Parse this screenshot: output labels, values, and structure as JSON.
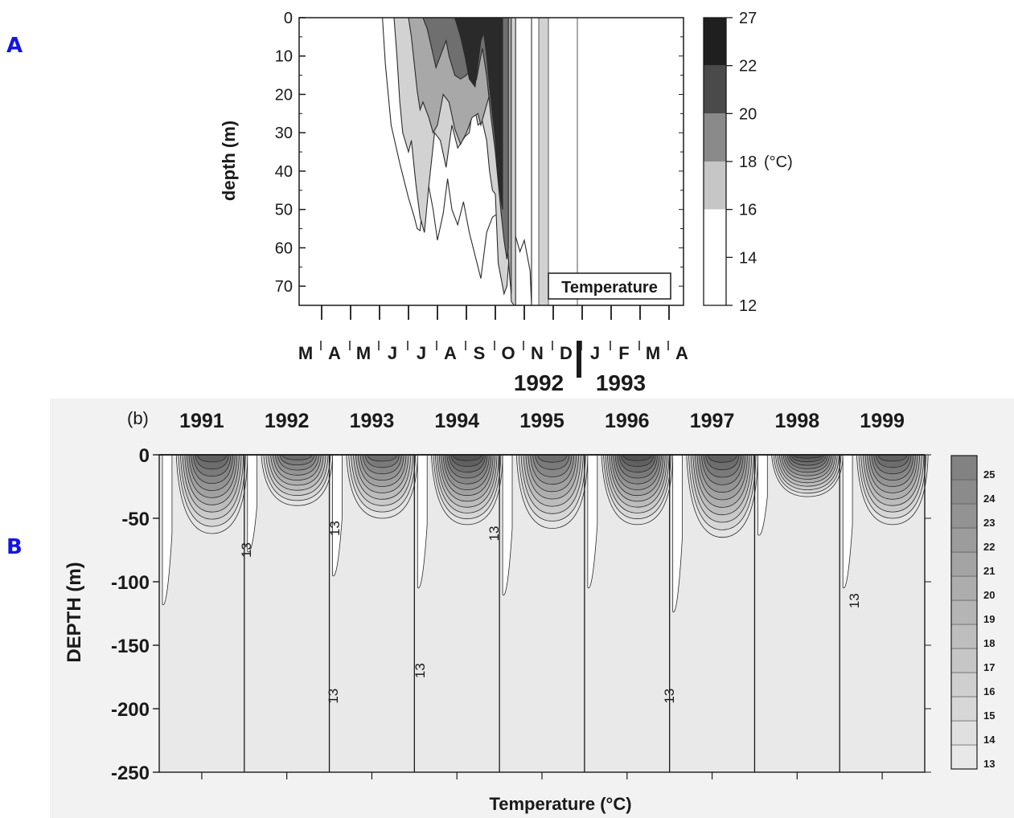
{
  "panel_labels": {
    "a": "A",
    "b": "B"
  },
  "colors": {
    "panel_letter": "#1414e6",
    "ink": "#1a1a1a",
    "panel_b_background": "#f2f2f2"
  },
  "chart_data": [
    {
      "id": "A",
      "type": "heatmap",
      "title": "",
      "annotation": "Temperature",
      "ylabel": "depth (m)",
      "yticks": [
        0,
        10,
        20,
        30,
        40,
        50,
        60,
        70
      ],
      "ylim": [
        0,
        75
      ],
      "months": [
        "M",
        "A",
        "M",
        "J",
        "J",
        "A",
        "S",
        "O",
        "N",
        "D",
        "J",
        "F",
        "M",
        "A"
      ],
      "years": [
        "1992",
        "1993"
      ],
      "colorbar": {
        "unit": "(°C)",
        "levels": [
          27,
          22,
          20,
          18,
          16,
          14,
          12
        ]
      },
      "contours": [
        {
          "level": 14,
          "x": [
            2.6,
            2.7,
            2.9,
            3.2,
            3.5,
            3.7,
            3.8,
            3.9,
            4.0,
            4.2,
            4.35,
            4.5,
            4.7,
            4.85,
            5.0,
            5.2,
            5.4,
            5.6,
            5.8,
            6.0,
            6.2,
            6.4,
            6.6,
            6.8,
            7.0,
            7.1,
            7.2,
            7.35,
            7.5,
            7.6,
            7.7,
            7.75
          ],
          "y": [
            0,
            12,
            28,
            38,
            47,
            52,
            55,
            55.5,
            48,
            44,
            50,
            58,
            51,
            42,
            50,
            54,
            48,
            56,
            62,
            68,
            56,
            52,
            51,
            54,
            58,
            60,
            57,
            61,
            58,
            62,
            66,
            75
          ]
        },
        {
          "level": 16,
          "x": [
            3.0,
            3.1,
            3.2,
            3.3,
            3.5,
            3.6,
            3.75,
            3.9,
            4.05,
            4.2,
            4.4,
            4.6,
            4.8,
            5.0,
            5.2,
            5.45,
            5.6,
            5.75,
            5.9,
            6.05,
            6.2,
            6.3,
            6.4,
            6.5,
            6.6,
            6.7,
            6.8,
            6.9,
            7.0,
            7.05,
            7.15,
            7.2
          ],
          "y": [
            0,
            10,
            22,
            30,
            35,
            32,
            43,
            52,
            56,
            44,
            30,
            32,
            39,
            28,
            34,
            31,
            30,
            22,
            28,
            27,
            32,
            40,
            45,
            46,
            64,
            68,
            72,
            70,
            60,
            74,
            75,
            75
          ]
        },
        {
          "level": 18,
          "x": [
            3.5,
            3.6,
            3.7,
            3.8,
            3.9,
            4.0,
            4.2,
            4.35,
            4.5,
            4.7,
            4.9,
            5.1,
            5.3,
            5.5,
            5.7,
            5.9,
            6.0,
            6.15,
            6.3,
            6.45,
            6.6,
            6.7,
            6.8,
            6.9,
            7.0,
            7.05
          ],
          "y": [
            0,
            5,
            12,
            19,
            24,
            22,
            26,
            30,
            28,
            20,
            22,
            29,
            33,
            30,
            26,
            25,
            28,
            24,
            20,
            17,
            28,
            38,
            48,
            57,
            68,
            72
          ]
        },
        {
          "level": 20,
          "x": [
            4.0,
            4.15,
            4.3,
            4.45,
            4.6,
            4.8,
            4.9,
            5.1,
            5.3,
            5.5,
            5.7,
            5.85,
            5.95,
            6.05,
            6.2,
            6.35,
            6.5,
            6.6,
            6.7,
            6.8,
            6.9,
            6.95
          ],
          "y": [
            0,
            3,
            8,
            13,
            10,
            6,
            10,
            15,
            16,
            15,
            13,
            16,
            12,
            8,
            15,
            26,
            35,
            43,
            51,
            58,
            63,
            60
          ]
        },
        {
          "level": 22,
          "x": [
            5.1,
            5.3,
            5.45,
            5.6,
            5.8,
            5.9,
            6.0,
            6.1,
            6.2,
            6.3,
            6.4,
            6.5,
            6.6,
            6.7,
            6.75
          ],
          "y": [
            0,
            5,
            10,
            16,
            18,
            12,
            6,
            4,
            10,
            18,
            25,
            32,
            42,
            48,
            50
          ]
        }
      ]
    },
    {
      "id": "B",
      "type": "heatmap",
      "title": "",
      "panel_tag": "(b)",
      "xlabel": "Temperature (°C)",
      "ylabel": "DEPTH (m)",
      "yticks": [
        0,
        -50,
        -100,
        -150,
        -200,
        -250
      ],
      "ylim": [
        -250,
        0
      ],
      "years": [
        "1991",
        "1992",
        "1993",
        "1994",
        "1995",
        "1996",
        "1997",
        "1998",
        "1999"
      ],
      "colorbar": {
        "levels": [
          13,
          14,
          15,
          16,
          17,
          18,
          19,
          20,
          21,
          22,
          23,
          24,
          25
        ]
      },
      "contour_label": "13",
      "season": [
        {
          "year": "1991",
          "thermocline_depth": 62,
          "peak_temp": 24
        },
        {
          "year": "1992",
          "thermocline_depth": 40,
          "peak_temp": 23
        },
        {
          "year": "1993",
          "thermocline_depth": 50,
          "peak_temp": 23
        },
        {
          "year": "1994",
          "thermocline_depth": 55,
          "peak_temp": 25
        },
        {
          "year": "1995",
          "thermocline_depth": 58,
          "peak_temp": 23
        },
        {
          "year": "1996",
          "thermocline_depth": 55,
          "peak_temp": 25
        },
        {
          "year": "1997",
          "thermocline_depth": 65,
          "peak_temp": 24
        },
        {
          "year": "1998",
          "thermocline_depth": 33,
          "peak_temp": 25
        },
        {
          "year": "1999",
          "thermocline_depth": 55,
          "peak_temp": 24
        }
      ]
    }
  ]
}
